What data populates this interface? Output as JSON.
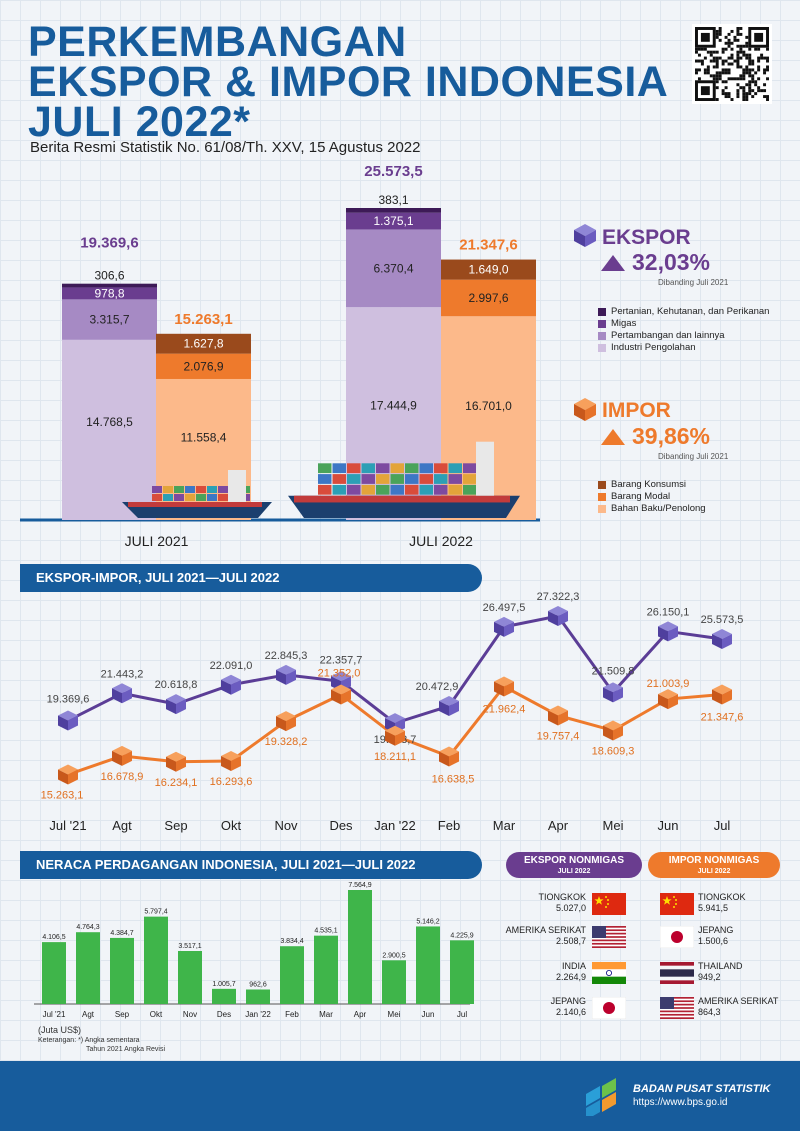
{
  "header": {
    "title_lines": [
      "PERKEMBANGAN",
      "EKSPOR & IMPOR INDONESIA",
      "JULI 2022*"
    ],
    "subtitle": "Berita Resmi Statistik No. 61/08/Th. XXV, 15 Agustus 2022"
  },
  "ekspor": {
    "label": "EKSPOR",
    "change": "32,03%",
    "note": "Dibanding Juli 2021",
    "color": "#6a3d8f",
    "legend": [
      "Pertanian, Kehutanan, dan Perikanan",
      "Migas",
      "Pertambangan dan lainnya",
      "Industri Pengolahan"
    ],
    "legend_colors": [
      "#3d1a57",
      "#6a3d8f",
      "#a68ac4",
      "#cfbfdf"
    ]
  },
  "impor": {
    "label": "IMPOR",
    "change": "39,86%",
    "note": "Dibanding Juli 2021",
    "color": "#ee7a2c",
    "legend": [
      "Barang Konsumsi",
      "Barang Modal",
      "Bahan Baku/Penolong"
    ],
    "legend_colors": [
      "#9a4a1c",
      "#ee7a2c",
      "#fcb98a"
    ]
  },
  "chart_data": [
    {
      "type": "bar",
      "categories": [
        "JULI 2021",
        "JULI 2022"
      ],
      "ekspor_totals": [
        "19.369,6",
        "25.573,5"
      ],
      "impor_totals": [
        "15.263,1",
        "21.347,6"
      ],
      "series": [
        {
          "group": "ekspor",
          "name": "Industri Pengolahan",
          "values": [
            14768.5,
            17444.9
          ],
          "labels": [
            "14.768,5",
            "17.444,9"
          ]
        },
        {
          "group": "ekspor",
          "name": "Pertambangan dan lainnya",
          "values": [
            3315.7,
            6370.4
          ],
          "labels": [
            "3.315,7",
            "6.370,4"
          ]
        },
        {
          "group": "ekspor",
          "name": "Migas",
          "values": [
            978.8,
            1375.1
          ],
          "labels": [
            "978,8",
            "1.375,1"
          ]
        },
        {
          "group": "ekspor",
          "name": "Pertanian, Kehutanan, dan Perikanan",
          "values": [
            306.6,
            383.1
          ],
          "labels": [
            "306,6",
            "383,1"
          ]
        },
        {
          "group": "impor",
          "name": "Bahan Baku/Penolong",
          "values": [
            11558.4,
            16701.0
          ],
          "labels": [
            "11.558,4",
            "16.701,0"
          ]
        },
        {
          "group": "impor",
          "name": "Barang Modal",
          "values": [
            2076.9,
            2997.6
          ],
          "labels": [
            "2.076,9",
            "2.997,6"
          ]
        },
        {
          "group": "impor",
          "name": "Barang Konsumsi",
          "values": [
            1627.8,
            1649.0
          ],
          "labels": [
            "1.627,8",
            "1.649,0"
          ]
        }
      ]
    },
    {
      "type": "line",
      "title": "EKSPOR-IMPOR, JULI 2021—JULI 2022",
      "x": [
        "Jul '21",
        "Agt",
        "Sep",
        "Okt",
        "Nov",
        "Des",
        "Jan '22",
        "Feb",
        "Mar",
        "Apr",
        "Mei",
        "Jun",
        "Jul"
      ],
      "series": [
        {
          "name": "Ekspor",
          "values": [
            19369.6,
            21443.2,
            20618.8,
            22091.0,
            22845.3,
            22357.7,
            19173.7,
            20472.9,
            26497.5,
            27322.3,
            21509.8,
            26150.1,
            25573.5
          ],
          "labels": [
            "19.369,6",
            "21.443,2",
            "20.618,8",
            "22.091,0",
            "22.845,3",
            "22.357,7",
            "19.173,7",
            "20.472,9",
            "26.497,5",
            "27.322,3",
            "21.509,8",
            "26.150,1",
            "25.573,5"
          ]
        },
        {
          "name": "Impor",
          "values": [
            15263.1,
            16678.9,
            16234.1,
            16293.6,
            19328.2,
            21352.0,
            18211.1,
            16638.5,
            21962.4,
            19757.4,
            18609.3,
            21003.9,
            21347.6
          ],
          "labels": [
            "15.263,1",
            "16.678,9",
            "16.234,1",
            "16.293,6",
            "19.328,2",
            "21.352,0",
            "18.211,1",
            "16.638,5",
            "21.962,4",
            "19.757,4",
            "18.609,3",
            "21.003,9",
            "21.347,6"
          ]
        }
      ]
    },
    {
      "type": "bar",
      "title": "NERACA PERDAGANGAN INDONESIA, JULI 2021—JULI 2022",
      "categories": [
        "Jul '21",
        "Agt",
        "Sep",
        "Okt",
        "Nov",
        "Des",
        "Jan '22",
        "Feb",
        "Mar",
        "Apr",
        "Mei",
        "Jun",
        "Jul"
      ],
      "values": [
        4106.5,
        4764.3,
        4384.7,
        5797.4,
        3517.1,
        1005.7,
        962.6,
        3834.4,
        4535.1,
        7564.9,
        2900.5,
        5146.2,
        4225.9
      ],
      "labels": [
        "4.106,5",
        "4.764,3",
        "4.384,7",
        "5.797,4",
        "3.517,1",
        "1.005,7",
        "962,6",
        "3.834,4",
        "4.535,1",
        "7.564,9",
        "2.900,5",
        "5.146,2",
        "4.225,9"
      ],
      "unit": "(Juta US$)"
    }
  ],
  "nonmigas": {
    "ekspor_title": "EKSPOR NONMIGAS",
    "impor_title": "IMPOR NONMIGAS",
    "period": "JULI 2022",
    "ekspor": [
      {
        "country": "TIONGKOK",
        "value": "5.027,0",
        "flag": "cn"
      },
      {
        "country": "AMERIKA SERIKAT",
        "value": "2.508,7",
        "flag": "us"
      },
      {
        "country": "INDIA",
        "value": "2.264,9",
        "flag": "in"
      },
      {
        "country": "JEPANG",
        "value": "2.140,6",
        "flag": "jp"
      }
    ],
    "impor": [
      {
        "country": "TIONGKOK",
        "value": "5.941,5",
        "flag": "cn"
      },
      {
        "country": "JEPANG",
        "value": "1.500,6",
        "flag": "jp"
      },
      {
        "country": "THAILAND",
        "value": "949,2",
        "flag": "th"
      },
      {
        "country": "AMERIKA SERIKAT",
        "value": "864,3",
        "flag": "us"
      }
    ]
  },
  "notes": {
    "line1": "Keterangan: *) Angka sementara",
    "line2": "Tahun 2021 Angka Revisi"
  },
  "footer": {
    "org": "BADAN PUSAT STATISTIK",
    "url": "https://www.bps.go.id"
  }
}
